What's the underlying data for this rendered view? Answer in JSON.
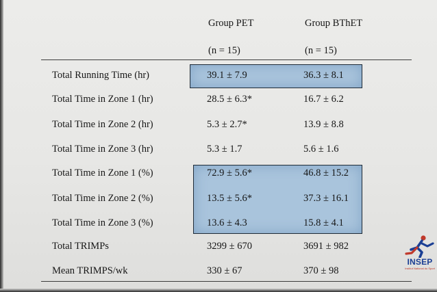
{
  "table": {
    "columns": [
      {
        "name": "Group PET",
        "n": "(n = 15)"
      },
      {
        "name": "Group BThET",
        "n": "(n = 15)"
      }
    ],
    "rows": [
      {
        "label": "Total Running Time (hr)",
        "pet": "39.1 ± 7.9",
        "bthet": "36.3 ± 8.1"
      },
      {
        "label": "Total Time in Zone 1 (hr)",
        "pet": "28.5 ± 6.3*",
        "bthet": "16.7 ± 6.2"
      },
      {
        "label": "Total Time in Zone 2 (hr)",
        "pet": "5.3 ± 2.7*",
        "bthet": "13.9 ± 8.8"
      },
      {
        "label": "Total Time in Zone 3 (hr)",
        "pet": "5.3 ± 1.7",
        "bthet": "5.6 ± 1.6"
      },
      {
        "label": "Total Time in Zone 1 (%)",
        "pet": "72.9 ± 5.6*",
        "bthet": "46.8 ± 15.2"
      },
      {
        "label": "Total Time in Zone 2 (%)",
        "pet": "13.5 ± 5.6*",
        "bthet": "37.3 ± 16.1"
      },
      {
        "label": "Total Time in Zone 3 (%)",
        "pet": "13.6 ± 4.3",
        "bthet": "15.8 ± 4.1"
      },
      {
        "label": "Total TRIMPs",
        "pet": "3299 ± 670",
        "bthet": "3691 ± 982"
      },
      {
        "label": "Mean TRIMPS/wk",
        "pet": "330 ± 67",
        "bthet": "370 ± 98"
      }
    ]
  },
  "logo": {
    "text": "INSEP",
    "tagline": "Institut National du Sport",
    "icon": "running-figure-logo-icon"
  },
  "colors": {
    "highlight_fill": "#a9c4dc",
    "highlight_border": "#1e2a36",
    "logo_blue": "#1b3f94",
    "logo_red": "#c0392b"
  }
}
